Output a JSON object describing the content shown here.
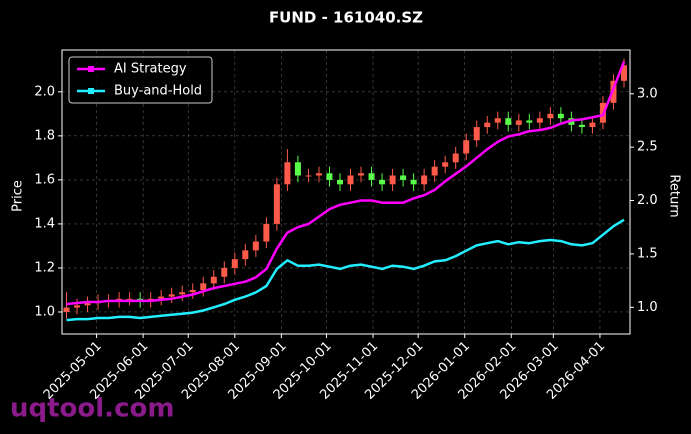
{
  "chart_data": {
    "type": "candlestick",
    "title": "FUND - 161040.SZ",
    "ylabel": "Price",
    "y2label": "Return",
    "watermark": "uqtool.com",
    "x": [
      "2025-04-11",
      "2025-04-18",
      "2025-04-25",
      "2025-05-02",
      "2025-05-09",
      "2025-05-16",
      "2025-05-23",
      "2025-05-30",
      "2025-06-06",
      "2025-06-13",
      "2025-06-20",
      "2025-06-27",
      "2025-07-04",
      "2025-07-11",
      "2025-07-18",
      "2025-07-25",
      "2025-08-01",
      "2025-08-08",
      "2025-08-15",
      "2025-08-22",
      "2025-08-29",
      "2025-09-05",
      "2025-09-12",
      "2025-09-19",
      "2025-09-26",
      "2025-10-03",
      "2025-10-10",
      "2025-10-17",
      "2025-10-24",
      "2025-10-31",
      "2025-11-07",
      "2025-11-14",
      "2025-11-21",
      "2025-11-28",
      "2025-12-05",
      "2025-12-12",
      "2025-12-19",
      "2025-12-26",
      "2026-01-02",
      "2026-01-09",
      "2026-01-16",
      "2026-01-23",
      "2026-01-30",
      "2026-02-06",
      "2026-02-13",
      "2026-02-20",
      "2026-02-27",
      "2026-03-06",
      "2026-03-13",
      "2026-03-20",
      "2026-03-27",
      "2026-04-03",
      "2026-04-10",
      "2026-04-17"
    ],
    "open": [
      1.0,
      1.02,
      1.03,
      1.04,
      1.05,
      1.05,
      1.06,
      1.06,
      1.05,
      1.06,
      1.07,
      1.08,
      1.09,
      1.1,
      1.13,
      1.16,
      1.2,
      1.24,
      1.28,
      1.32,
      1.4,
      1.58,
      1.68,
      1.62,
      1.62,
      1.63,
      1.6,
      1.58,
      1.62,
      1.63,
      1.6,
      1.58,
      1.62,
      1.6,
      1.58,
      1.62,
      1.66,
      1.68,
      1.72,
      1.78,
      1.84,
      1.86,
      1.88,
      1.85,
      1.87,
      1.86,
      1.88,
      1.9,
      1.88,
      1.85,
      1.84,
      1.86,
      1.95,
      2.05
    ],
    "high": [
      1.09,
      1.06,
      1.07,
      1.08,
      1.08,
      1.09,
      1.09,
      1.09,
      1.09,
      1.1,
      1.11,
      1.12,
      1.13,
      1.16,
      1.19,
      1.23,
      1.27,
      1.31,
      1.35,
      1.43,
      1.61,
      1.74,
      1.71,
      1.65,
      1.66,
      1.66,
      1.63,
      1.65,
      1.66,
      1.66,
      1.63,
      1.65,
      1.65,
      1.63,
      1.65,
      1.69,
      1.71,
      1.75,
      1.81,
      1.87,
      1.89,
      1.91,
      1.91,
      1.9,
      1.9,
      1.91,
      1.93,
      1.93,
      1.91,
      1.88,
      1.89,
      1.98,
      2.08,
      2.15
    ],
    "low": [
      0.97,
      0.99,
      1.0,
      1.01,
      1.02,
      1.02,
      1.03,
      1.02,
      1.02,
      1.03,
      1.04,
      1.05,
      1.06,
      1.07,
      1.1,
      1.13,
      1.17,
      1.21,
      1.25,
      1.29,
      1.37,
      1.55,
      1.59,
      1.59,
      1.59,
      1.57,
      1.55,
      1.55,
      1.59,
      1.57,
      1.55,
      1.55,
      1.57,
      1.55,
      1.55,
      1.59,
      1.63,
      1.65,
      1.69,
      1.75,
      1.81,
      1.83,
      1.82,
      1.82,
      1.83,
      1.83,
      1.85,
      1.85,
      1.82,
      1.81,
      1.81,
      1.83,
      1.92,
      2.02
    ],
    "close": [
      1.02,
      1.03,
      1.04,
      1.05,
      1.05,
      1.06,
      1.06,
      1.05,
      1.06,
      1.07,
      1.08,
      1.09,
      1.1,
      1.13,
      1.16,
      1.2,
      1.24,
      1.28,
      1.32,
      1.4,
      1.58,
      1.68,
      1.62,
      1.62,
      1.63,
      1.6,
      1.58,
      1.62,
      1.63,
      1.6,
      1.58,
      1.62,
      1.6,
      1.58,
      1.62,
      1.66,
      1.68,
      1.72,
      1.78,
      1.84,
      1.86,
      1.88,
      1.85,
      1.87,
      1.86,
      1.88,
      1.9,
      1.88,
      1.85,
      1.84,
      1.86,
      1.95,
      2.05,
      2.12
    ],
    "up_color": "#ff5a4a",
    "down_color": "#5aff4a",
    "series": [
      {
        "name": "AI Strategy",
        "color": "#ff00ff",
        "axis": "y2",
        "values": [
          1.03,
          1.04,
          1.05,
          1.05,
          1.06,
          1.06,
          1.06,
          1.06,
          1.06,
          1.07,
          1.08,
          1.1,
          1.12,
          1.15,
          1.18,
          1.2,
          1.22,
          1.24,
          1.28,
          1.36,
          1.55,
          1.7,
          1.75,
          1.78,
          1.85,
          1.92,
          1.96,
          1.98,
          2.0,
          2.0,
          1.98,
          1.98,
          1.98,
          2.02,
          2.05,
          2.1,
          2.18,
          2.25,
          2.32,
          2.4,
          2.48,
          2.55,
          2.6,
          2.62,
          2.65,
          2.66,
          2.68,
          2.72,
          2.75,
          2.76,
          2.78,
          2.8,
          3.05,
          3.3
        ]
      },
      {
        "name": "Buy-and-Hold",
        "color": "#22eeff",
        "axis": "y2",
        "values": [
          0.88,
          0.89,
          0.89,
          0.9,
          0.9,
          0.91,
          0.91,
          0.9,
          0.91,
          0.92,
          0.93,
          0.94,
          0.95,
          0.97,
          1.0,
          1.03,
          1.07,
          1.1,
          1.14,
          1.2,
          1.36,
          1.44,
          1.39,
          1.39,
          1.4,
          1.38,
          1.36,
          1.39,
          1.4,
          1.38,
          1.36,
          1.39,
          1.38,
          1.36,
          1.39,
          1.43,
          1.44,
          1.48,
          1.53,
          1.58,
          1.6,
          1.62,
          1.59,
          1.61,
          1.6,
          1.62,
          1.63,
          1.62,
          1.59,
          1.58,
          1.6,
          1.68,
          1.76,
          1.82
        ]
      }
    ],
    "xlim": [
      "2025-04-08",
      "2026-04-21"
    ],
    "xticks": [
      "2025-05-01",
      "2025-06-01",
      "2025-07-01",
      "2025-08-01",
      "2025-09-01",
      "2025-10-01",
      "2025-11-01",
      "2025-12-01",
      "2026-01-01",
      "2026-02-01",
      "2026-03-01",
      "2026-04-01"
    ],
    "ylim": [
      0.9,
      2.19
    ],
    "yticks": [
      {
        "value": 1.0,
        "label": "1.0"
      },
      {
        "value": 1.2,
        "label": "1.2"
      },
      {
        "value": 1.4,
        "label": "1.4"
      },
      {
        "value": 1.6,
        "label": "1.6"
      },
      {
        "value": 1.8,
        "label": "1.8"
      },
      {
        "value": 2.0,
        "label": "2.0"
      }
    ],
    "y2lim": [
      0.75,
      3.41
    ],
    "y2ticks": [
      {
        "value": 1.0,
        "label": "1.0"
      },
      {
        "value": 1.5,
        "label": "1.5"
      },
      {
        "value": 2.0,
        "label": "2.0"
      },
      {
        "value": 2.5,
        "label": "2.5"
      },
      {
        "value": 3.0,
        "label": "3.0"
      }
    ],
    "grid": true,
    "legend": "upper left"
  }
}
